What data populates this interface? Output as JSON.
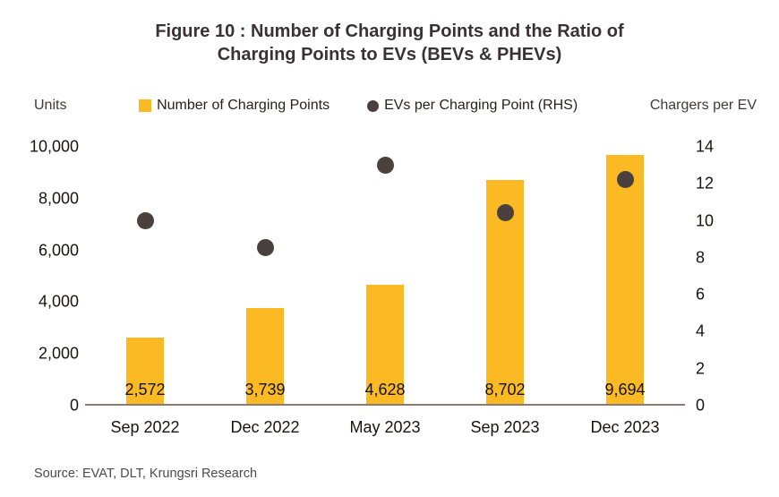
{
  "figure": {
    "title": "Figure 10 : Number of Charging Points and the Ratio of Charging Points to EVs (BEVs & PHEVs)",
    "source": "Source: EVAT, DLT, Krungsri Research"
  },
  "legend": {
    "items": [
      {
        "label": "Number of Charging Points",
        "marker": "square-icon",
        "color": "#fbb924"
      },
      {
        "label": "EVs per Charging Point (RHS)",
        "marker": "circle-icon",
        "color": "#4a403d"
      }
    ]
  },
  "chart_data": {
    "type": "bar",
    "subtype": "bar-scatter-combo",
    "title": "Figure 10 : Number of Charging Points and the Ratio of Charging Points to EVs (BEVs & PHEVs)",
    "categories": [
      "Sep 2022",
      "Dec 2022",
      "May 2023",
      "Sep 2023",
      "Dec 2023"
    ],
    "series": [
      {
        "name": "Number of Charging Points",
        "type": "bar",
        "axis": "left",
        "values": [
          2572,
          3739,
          4628,
          8702,
          9694
        ],
        "labels": [
          "2,572",
          "3,739",
          "4,628",
          "8,702",
          "9,694"
        ],
        "color": "#fbb924"
      },
      {
        "name": "EVs per Charging Point (RHS)",
        "type": "scatter",
        "axis": "right",
        "values": [
          10.0,
          8.5,
          13.0,
          10.4,
          12.2
        ],
        "color": "#4a403d"
      }
    ],
    "left_axis": {
      "label": "Units",
      "min": 0,
      "max": 10000,
      "tick_step": 2000,
      "ticks": [
        "0",
        "2,000",
        "4,000",
        "6,000",
        "8,000",
        "10,000"
      ]
    },
    "right_axis": {
      "label": "Chargers per EV",
      "min": 0,
      "max": 14,
      "tick_step": 2,
      "ticks": [
        "0",
        "2",
        "4",
        "6",
        "8",
        "10",
        "12",
        "14"
      ]
    },
    "legend_position": "top",
    "grid": false
  }
}
